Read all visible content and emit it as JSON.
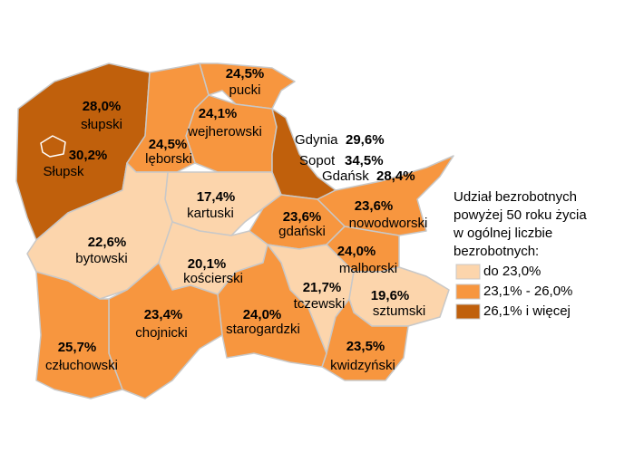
{
  "map": {
    "regions": [
      {
        "name": "słupski",
        "value": 28.0,
        "value_label": "28,0%",
        "color": "#c0600c"
      },
      {
        "name": "Słupsk",
        "value": 30.2,
        "value_label": "30,2%",
        "color": "#c0600c"
      },
      {
        "name": "pucki",
        "value": 24.5,
        "value_label": "24,5%",
        "color": "#f7963f"
      },
      {
        "name": "wejherowski",
        "value": 24.1,
        "value_label": "24,1%",
        "color": "#f7963f"
      },
      {
        "name": "lęborski",
        "value": 24.5,
        "value_label": "24,5%",
        "color": "#f7963f"
      },
      {
        "name": "Gdynia",
        "value": 29.6,
        "value_label": "29,6%",
        "color": "#c0600c"
      },
      {
        "name": "Sopot",
        "value": 34.5,
        "value_label": "34,5%",
        "color": "#c0600c"
      },
      {
        "name": "Gdańsk",
        "value": 28.4,
        "value_label": "28,4%",
        "color": "#c0600c"
      },
      {
        "name": "kartuski",
        "value": 17.4,
        "value_label": "17,4%",
        "color": "#fcd5ac"
      },
      {
        "name": "nowodworski",
        "value": 23.6,
        "value_label": "23,6%",
        "color": "#f7963f"
      },
      {
        "name": "gdański",
        "value": 23.6,
        "value_label": "23,6%",
        "color": "#f7963f"
      },
      {
        "name": "bytowski",
        "value": 22.6,
        "value_label": "22,6%",
        "color": "#fcd5ac"
      },
      {
        "name": "kościerski",
        "value": 20.1,
        "value_label": "20,1%",
        "color": "#fcd5ac"
      },
      {
        "name": "malborski",
        "value": 24.0,
        "value_label": "24,0%",
        "color": "#f7963f"
      },
      {
        "name": "tczewski",
        "value": 21.7,
        "value_label": "21,7%",
        "color": "#fcd5ac"
      },
      {
        "name": "sztumski",
        "value": 19.6,
        "value_label": "19,6%",
        "color": "#fcd5ac"
      },
      {
        "name": "człuchowski",
        "value": 25.7,
        "value_label": "25,7%",
        "color": "#f7963f"
      },
      {
        "name": "chojnicki",
        "value": 23.4,
        "value_label": "23,4%",
        "color": "#f7963f"
      },
      {
        "name": "starogardzki",
        "value": 24.0,
        "value_label": "24,0%",
        "color": "#f7963f"
      },
      {
        "name": "kwidzyński",
        "value": 23.5,
        "value_label": "23,5%",
        "color": "#f7963f"
      }
    ],
    "legend": {
      "title": [
        "Udział bezrobotnych",
        "powyżej 50 roku życia",
        "w ogólnej liczbie",
        "bezrobotnych:"
      ],
      "classes": [
        {
          "label": "do 23,0%",
          "color": "#fcd5ac"
        },
        {
          "label": "23,1% - 26,0%",
          "color": "#f7963f"
        },
        {
          "label": "26,1% i więcej",
          "color": "#c0600c"
        }
      ]
    }
  }
}
